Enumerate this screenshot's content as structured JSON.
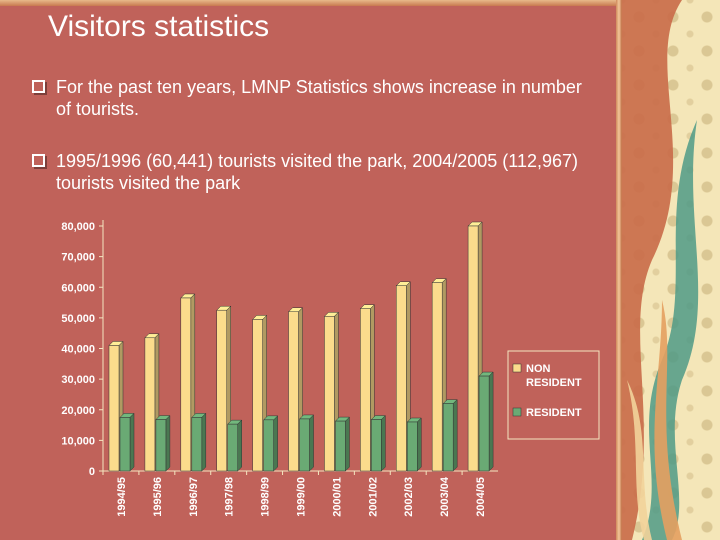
{
  "slide": {
    "title": "Visitors statistics",
    "bullets": [
      "For the past ten years, LMNP Statistics shows increase in number of tourists.",
      "1995/1996 (60,441) tourists visited the park, 2004/2005 (112,967) tourists visited the park"
    ]
  },
  "colors": {
    "background": "#c0625a",
    "non_resident": "#fbdc8c",
    "resident": "#6aaa74",
    "axis_text": "#ffffff"
  },
  "chart_data": {
    "type": "bar",
    "categories": [
      "1994/95",
      "1995/96",
      "1996/97",
      "1997/98",
      "1998/99",
      "1999/00",
      "2000/01",
      "2001/02",
      "2002/03",
      "2003/04",
      "2004/05"
    ],
    "series": [
      {
        "name": "NON RESIDENT",
        "values": [
          41000,
          43500,
          56500,
          52500,
          49500,
          52000,
          50500,
          53000,
          60500,
          61500,
          80000
        ]
      },
      {
        "name": "RESIDENT",
        "values": [
          17500,
          16800,
          17500,
          15300,
          16700,
          17000,
          16300,
          16800,
          16000,
          22000,
          31000
        ]
      }
    ],
    "yticks": [
      "0",
      "10,000",
      "20,000",
      "30,000",
      "40,000",
      "50,000",
      "60,000",
      "70,000",
      "80,000"
    ],
    "ylim": [
      0,
      80000
    ],
    "legend_position": "right",
    "grid": false,
    "style": "3d-bars"
  }
}
